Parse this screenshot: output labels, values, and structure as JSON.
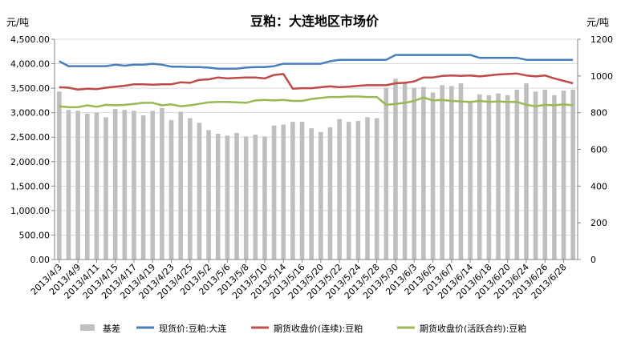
{
  "chart_data": {
    "type": "bar+line",
    "title": "豆粕：大连地区市场价",
    "left_unit": "元/吨",
    "right_unit": "元/吨",
    "left_axis": {
      "min": 0,
      "max": 4500,
      "step": 500,
      "ticks": [
        "0.00",
        "500.00",
        "1,000.00",
        "1,500.00",
        "2,000.00",
        "2,500.00",
        "3,000.00",
        "3,500.00",
        "4,000.00",
        "4,500.00"
      ]
    },
    "right_axis": {
      "min": 0,
      "max": 1200,
      "step": 200,
      "ticks": [
        "0",
        "200",
        "400",
        "600",
        "800",
        "1000",
        "1200"
      ]
    },
    "grid": true,
    "legend_position": "bottom",
    "x_tick_labels": [
      "2013/4/3",
      "2013/4/9",
      "2013/4/11",
      "2013/4/15",
      "2013/4/17",
      "2013/4/19",
      "2013/4/23",
      "2013/4/25",
      "2013/5/2",
      "2013/5/6",
      "2013/5/8",
      "2013/5/10",
      "2013/5/14",
      "2013/5/16",
      "2013/5/20",
      "2013/5/22",
      "2013/5/24",
      "2013/5/28",
      "2013/5/30",
      "2013/6/3",
      "2013/6/5",
      "2013/6/7",
      "2013/6/14",
      "2013/6/18",
      "2013/6/20",
      "2013/6/24",
      "2013/6/26",
      "2013/6/28"
    ],
    "points_count": 56,
    "series": [
      {
        "name": "基差",
        "axis": "right",
        "kind": "bar",
        "color": "#bfbfbf",
        "values": [
          915,
          815,
          810,
          795,
          800,
          775,
          820,
          815,
          810,
          785,
          810,
          825,
          760,
          805,
          770,
          745,
          705,
          685,
          675,
          690,
          670,
          680,
          670,
          730,
          735,
          750,
          750,
          715,
          695,
          720,
          765,
          750,
          755,
          775,
          770,
          935,
          985,
          965,
          935,
          940,
          910,
          950,
          945,
          960,
          860,
          900,
          895,
          905,
          895,
          925,
          960,
          915,
          925,
          895,
          920,
          925
        ]
      },
      {
        "name": "现货价:豆粕:大连",
        "axis": "left",
        "kind": "line",
        "color": "#4a7ebb",
        "values": [
          4050,
          3950,
          3950,
          3950,
          3950,
          3950,
          3980,
          3960,
          3980,
          3980,
          4000,
          3980,
          3940,
          3940,
          3930,
          3930,
          3920,
          3900,
          3900,
          3900,
          3920,
          3930,
          3930,
          3950,
          4000,
          4000,
          4000,
          4000,
          4000,
          4050,
          4080,
          4080,
          4080,
          4080,
          4080,
          4080,
          4180,
          4180,
          4180,
          4180,
          4180,
          4180,
          4180,
          4180,
          4180,
          4120,
          4120,
          4120,
          4120,
          4120,
          4080,
          4080,
          4080,
          4080,
          4080,
          4080
        ]
      },
      {
        "name": "期货收盘价(连续):豆粕",
        "axis": "left",
        "kind": "line",
        "color": "#be4b48",
        "values": [
          3520,
          3510,
          3470,
          3490,
          3480,
          3510,
          3530,
          3550,
          3580,
          3580,
          3570,
          3580,
          3580,
          3620,
          3610,
          3670,
          3680,
          3720,
          3700,
          3710,
          3720,
          3720,
          3700,
          3770,
          3790,
          3490,
          3500,
          3500,
          3520,
          3540,
          3520,
          3530,
          3550,
          3560,
          3560,
          3560,
          3600,
          3610,
          3640,
          3720,
          3720,
          3750,
          3760,
          3750,
          3760,
          3740,
          3760,
          3780,
          3790,
          3800,
          3760,
          3740,
          3760,
          3700,
          3650,
          3600
        ]
      },
      {
        "name": "期货收盘价(活跃合约):豆粕",
        "axis": "left",
        "kind": "line",
        "color": "#98b954",
        "values": [
          3130,
          3110,
          3110,
          3150,
          3120,
          3160,
          3150,
          3160,
          3180,
          3200,
          3200,
          3150,
          3170,
          3130,
          3150,
          3180,
          3210,
          3220,
          3220,
          3210,
          3200,
          3250,
          3260,
          3250,
          3260,
          3240,
          3240,
          3280,
          3300,
          3320,
          3320,
          3330,
          3330,
          3320,
          3320,
          3160,
          3180,
          3200,
          3240,
          3310,
          3250,
          3260,
          3240,
          3230,
          3220,
          3240,
          3220,
          3230,
          3220,
          3220,
          3160,
          3130,
          3160,
          3150,
          3170,
          3150
        ]
      }
    ]
  }
}
